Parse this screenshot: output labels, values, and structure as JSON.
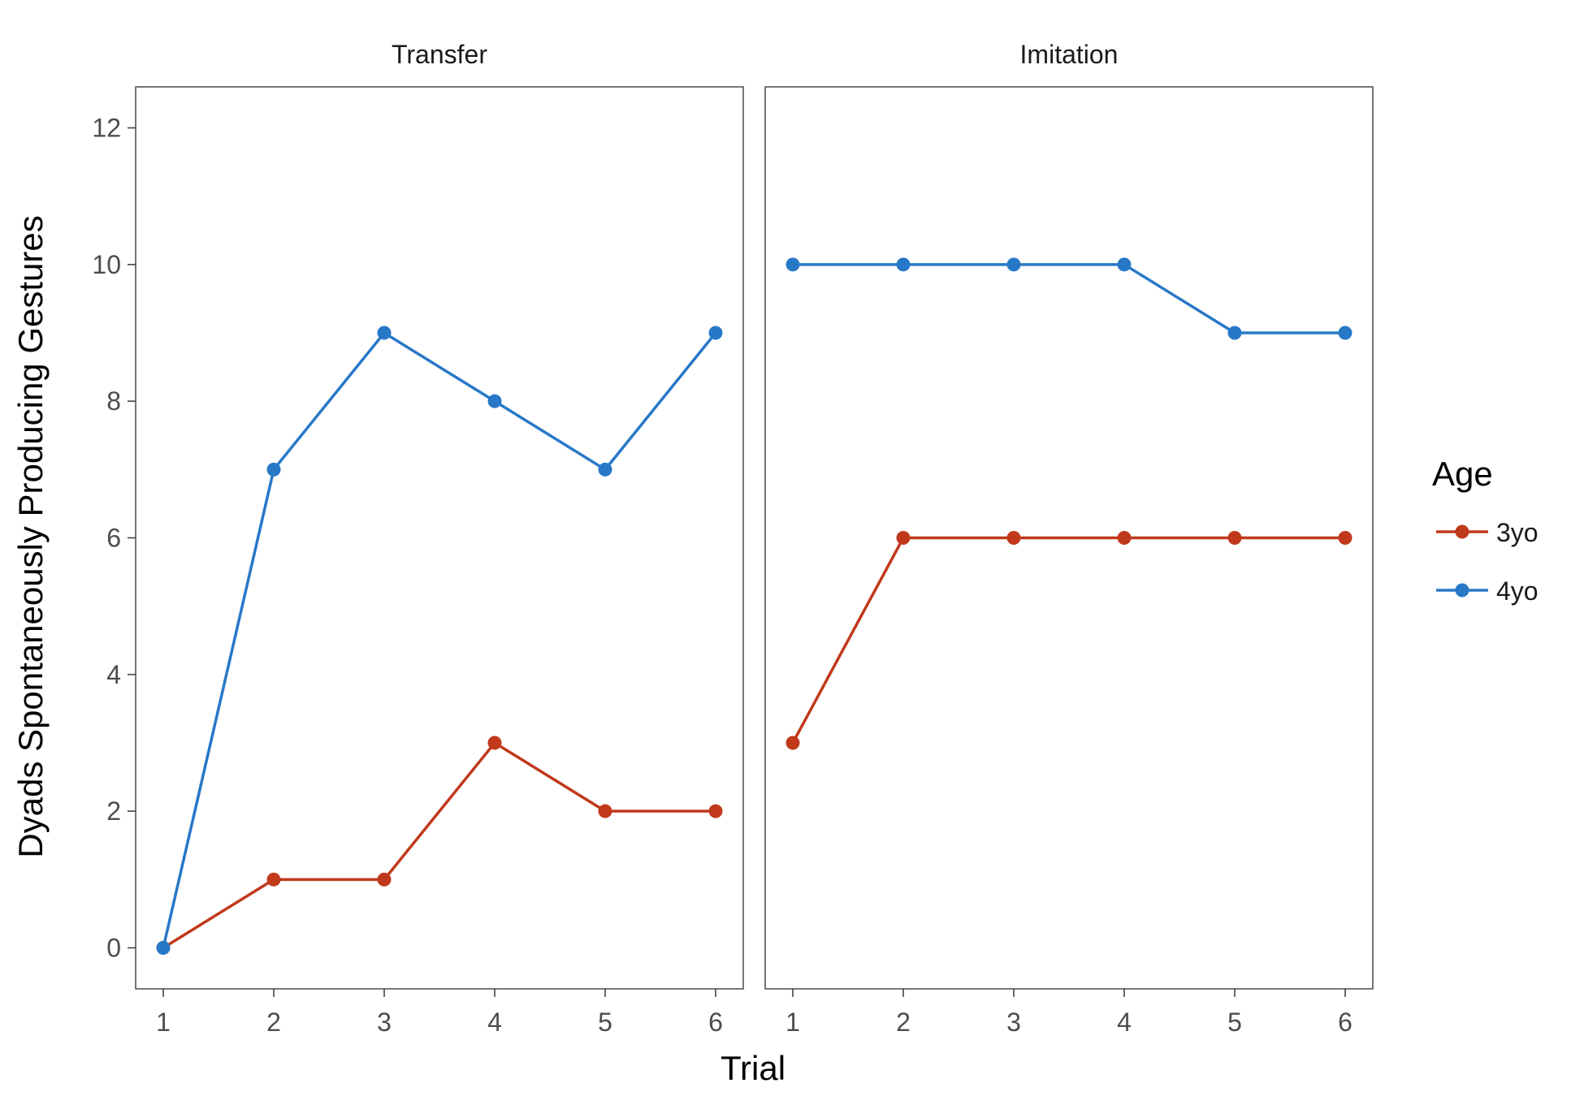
{
  "chart_data": {
    "type": "line",
    "xlabel": "Trial",
    "ylabel": "Dyads Spontaneously Producing Gestures",
    "x": [
      1,
      2,
      3,
      4,
      5,
      6
    ],
    "xlim": [
      0.75,
      6.25
    ],
    "ylim": [
      -0.6,
      12.6
    ],
    "yticks": [
      0,
      2,
      4,
      6,
      8,
      10,
      12
    ],
    "grid": false,
    "legend": {
      "title": "Age",
      "position": "right"
    },
    "colors": {
      "3yo": "#c0391b",
      "4yo": "#2878c8"
    },
    "facets": [
      {
        "label": "Transfer",
        "series": [
          {
            "name": "3yo",
            "values": [
              0,
              1,
              1,
              3,
              2,
              2
            ]
          },
          {
            "name": "4yo",
            "values": [
              0,
              7,
              9,
              8,
              7,
              9
            ]
          }
        ]
      },
      {
        "label": "Imitation",
        "series": [
          {
            "name": "3yo",
            "values": [
              3,
              6,
              6,
              6,
              6,
              6
            ]
          },
          {
            "name": "4yo",
            "values": [
              10,
              10,
              10,
              10,
              9,
              9
            ]
          }
        ]
      }
    ]
  }
}
